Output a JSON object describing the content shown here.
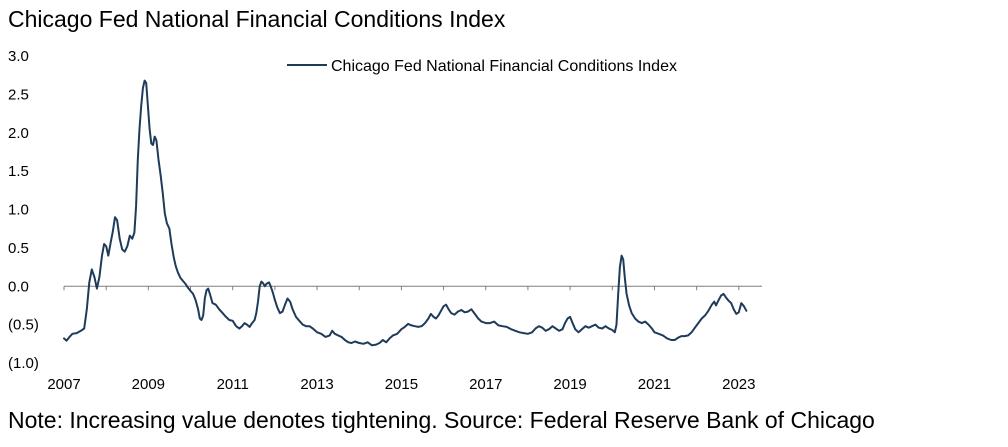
{
  "chart_data": {
    "type": "line",
    "title": "Chicago Fed National Financial Conditions Index",
    "note": "Note: Increasing value denotes tightening. Source: Federal Reserve Bank of Chicago",
    "xlabel": "",
    "ylabel": "",
    "xlim": [
      2007.0,
      2023.55
    ],
    "ylim": [
      -1.0,
      3.0
    ],
    "grid": false,
    "zero_line": true,
    "legend_position": "top-right",
    "x_ticks": [
      {
        "value": 2007,
        "label": "2007"
      },
      {
        "value": 2009,
        "label": "2009"
      },
      {
        "value": 2011,
        "label": "2011"
      },
      {
        "value": 2013,
        "label": "2013"
      },
      {
        "value": 2015,
        "label": "2015"
      },
      {
        "value": 2017,
        "label": "2017"
      },
      {
        "value": 2019,
        "label": "2019"
      },
      {
        "value": 2021,
        "label": "2021"
      },
      {
        "value": 2023,
        "label": "2023"
      }
    ],
    "y_ticks": [
      {
        "value": 3.0,
        "label": "3.0"
      },
      {
        "value": 2.5,
        "label": "2.5"
      },
      {
        "value": 2.0,
        "label": "2.0"
      },
      {
        "value": 1.5,
        "label": "1.5"
      },
      {
        "value": 1.0,
        "label": "1.0"
      },
      {
        "value": 0.5,
        "label": "0.5"
      },
      {
        "value": 0.0,
        "label": "0.0"
      },
      {
        "value": -0.5,
        "label": "(0.5)"
      },
      {
        "value": -1.0,
        "label": "(1.0)"
      }
    ],
    "series": [
      {
        "name": "Chicago Fed National Financial Conditions Index",
        "color": "#1f3b5a",
        "points": [
          [
            2007.0,
            -0.68
          ],
          [
            2007.06,
            -0.71
          ],
          [
            2007.13,
            -0.66
          ],
          [
            2007.2,
            -0.62
          ],
          [
            2007.3,
            -0.61
          ],
          [
            2007.4,
            -0.58
          ],
          [
            2007.48,
            -0.55
          ],
          [
            2007.54,
            -0.3
          ],
          [
            2007.6,
            0.05
          ],
          [
            2007.66,
            0.22
          ],
          [
            2007.72,
            0.12
          ],
          [
            2007.78,
            -0.03
          ],
          [
            2007.84,
            0.12
          ],
          [
            2007.9,
            0.4
          ],
          [
            2007.95,
            0.55
          ],
          [
            2008.0,
            0.52
          ],
          [
            2008.05,
            0.4
          ],
          [
            2008.1,
            0.55
          ],
          [
            2008.16,
            0.72
          ],
          [
            2008.21,
            0.9
          ],
          [
            2008.26,
            0.86
          ],
          [
            2008.32,
            0.62
          ],
          [
            2008.38,
            0.48
          ],
          [
            2008.44,
            0.45
          ],
          [
            2008.5,
            0.52
          ],
          [
            2008.56,
            0.66
          ],
          [
            2008.62,
            0.62
          ],
          [
            2008.67,
            0.7
          ],
          [
            2008.71,
            1.05
          ],
          [
            2008.75,
            1.65
          ],
          [
            2008.79,
            2.05
          ],
          [
            2008.83,
            2.35
          ],
          [
            2008.87,
            2.58
          ],
          [
            2008.91,
            2.68
          ],
          [
            2008.95,
            2.65
          ],
          [
            2008.99,
            2.35
          ],
          [
            2009.03,
            2.05
          ],
          [
            2009.07,
            1.86
          ],
          [
            2009.11,
            1.84
          ],
          [
            2009.15,
            1.95
          ],
          [
            2009.19,
            1.9
          ],
          [
            2009.24,
            1.65
          ],
          [
            2009.29,
            1.45
          ],
          [
            2009.34,
            1.22
          ],
          [
            2009.39,
            0.95
          ],
          [
            2009.44,
            0.82
          ],
          [
            2009.5,
            0.75
          ],
          [
            2009.55,
            0.55
          ],
          [
            2009.6,
            0.38
          ],
          [
            2009.65,
            0.26
          ],
          [
            2009.7,
            0.18
          ],
          [
            2009.76,
            0.11
          ],
          [
            2009.82,
            0.07
          ],
          [
            2009.88,
            0.03
          ],
          [
            2009.94,
            -0.02
          ],
          [
            2010.0,
            -0.06
          ],
          [
            2010.06,
            -0.1
          ],
          [
            2010.12,
            -0.18
          ],
          [
            2010.18,
            -0.3
          ],
          [
            2010.22,
            -0.42
          ],
          [
            2010.26,
            -0.44
          ],
          [
            2010.3,
            -0.38
          ],
          [
            2010.34,
            -0.15
          ],
          [
            2010.38,
            -0.05
          ],
          [
            2010.42,
            -0.03
          ],
          [
            2010.46,
            -0.1
          ],
          [
            2010.52,
            -0.22
          ],
          [
            2010.6,
            -0.24
          ],
          [
            2010.68,
            -0.3
          ],
          [
            2010.76,
            -0.35
          ],
          [
            2010.84,
            -0.4
          ],
          [
            2010.92,
            -0.44
          ],
          [
            2011.0,
            -0.45
          ],
          [
            2011.08,
            -0.52
          ],
          [
            2011.16,
            -0.55
          ],
          [
            2011.22,
            -0.52
          ],
          [
            2011.28,
            -0.48
          ],
          [
            2011.34,
            -0.5
          ],
          [
            2011.4,
            -0.53
          ],
          [
            2011.46,
            -0.48
          ],
          [
            2011.52,
            -0.44
          ],
          [
            2011.56,
            -0.35
          ],
          [
            2011.6,
            -0.2
          ],
          [
            2011.64,
            0.0
          ],
          [
            2011.68,
            0.06
          ],
          [
            2011.72,
            0.04
          ],
          [
            2011.76,
            0.0
          ],
          [
            2011.8,
            0.03
          ],
          [
            2011.86,
            0.05
          ],
          [
            2011.9,
            0.0
          ],
          [
            2011.95,
            -0.08
          ],
          [
            2012.0,
            -0.18
          ],
          [
            2012.06,
            -0.28
          ],
          [
            2012.12,
            -0.35
          ],
          [
            2012.18,
            -0.33
          ],
          [
            2012.24,
            -0.24
          ],
          [
            2012.3,
            -0.16
          ],
          [
            2012.36,
            -0.2
          ],
          [
            2012.42,
            -0.3
          ],
          [
            2012.5,
            -0.4
          ],
          [
            2012.58,
            -0.45
          ],
          [
            2012.66,
            -0.5
          ],
          [
            2012.74,
            -0.52
          ],
          [
            2012.82,
            -0.52
          ],
          [
            2012.9,
            -0.55
          ],
          [
            2013.0,
            -0.6
          ],
          [
            2013.1,
            -0.62
          ],
          [
            2013.2,
            -0.66
          ],
          [
            2013.3,
            -0.64
          ],
          [
            2013.36,
            -0.58
          ],
          [
            2013.42,
            -0.62
          ],
          [
            2013.5,
            -0.64
          ],
          [
            2013.58,
            -0.66
          ],
          [
            2013.66,
            -0.7
          ],
          [
            2013.74,
            -0.73
          ],
          [
            2013.82,
            -0.74
          ],
          [
            2013.9,
            -0.72
          ],
          [
            2014.0,
            -0.74
          ],
          [
            2014.1,
            -0.75
          ],
          [
            2014.2,
            -0.73
          ],
          [
            2014.3,
            -0.77
          ],
          [
            2014.4,
            -0.76
          ],
          [
            2014.48,
            -0.74
          ],
          [
            2014.56,
            -0.7
          ],
          [
            2014.64,
            -0.73
          ],
          [
            2014.72,
            -0.68
          ],
          [
            2014.8,
            -0.64
          ],
          [
            2014.9,
            -0.62
          ],
          [
            2015.0,
            -0.56
          ],
          [
            2015.08,
            -0.53
          ],
          [
            2015.16,
            -0.49
          ],
          [
            2015.24,
            -0.51
          ],
          [
            2015.32,
            -0.52
          ],
          [
            2015.4,
            -0.53
          ],
          [
            2015.48,
            -0.52
          ],
          [
            2015.56,
            -0.48
          ],
          [
            2015.64,
            -0.42
          ],
          [
            2015.7,
            -0.36
          ],
          [
            2015.76,
            -0.4
          ],
          [
            2015.82,
            -0.42
          ],
          [
            2015.88,
            -0.38
          ],
          [
            2015.94,
            -0.32
          ],
          [
            2016.0,
            -0.26
          ],
          [
            2016.06,
            -0.24
          ],
          [
            2016.12,
            -0.3
          ],
          [
            2016.18,
            -0.35
          ],
          [
            2016.26,
            -0.37
          ],
          [
            2016.34,
            -0.33
          ],
          [
            2016.42,
            -0.31
          ],
          [
            2016.5,
            -0.34
          ],
          [
            2016.58,
            -0.33
          ],
          [
            2016.66,
            -0.3
          ],
          [
            2016.74,
            -0.36
          ],
          [
            2016.82,
            -0.42
          ],
          [
            2016.9,
            -0.46
          ],
          [
            2017.0,
            -0.48
          ],
          [
            2017.1,
            -0.48
          ],
          [
            2017.2,
            -0.46
          ],
          [
            2017.3,
            -0.51
          ],
          [
            2017.4,
            -0.52
          ],
          [
            2017.5,
            -0.53
          ],
          [
            2017.6,
            -0.56
          ],
          [
            2017.7,
            -0.58
          ],
          [
            2017.8,
            -0.6
          ],
          [
            2017.9,
            -0.61
          ],
          [
            2018.0,
            -0.62
          ],
          [
            2018.1,
            -0.6
          ],
          [
            2018.18,
            -0.55
          ],
          [
            2018.26,
            -0.52
          ],
          [
            2018.34,
            -0.54
          ],
          [
            2018.42,
            -0.58
          ],
          [
            2018.5,
            -0.56
          ],
          [
            2018.58,
            -0.52
          ],
          [
            2018.66,
            -0.55
          ],
          [
            2018.74,
            -0.58
          ],
          [
            2018.82,
            -0.56
          ],
          [
            2018.88,
            -0.48
          ],
          [
            2018.94,
            -0.42
          ],
          [
            2019.0,
            -0.4
          ],
          [
            2019.06,
            -0.48
          ],
          [
            2019.12,
            -0.56
          ],
          [
            2019.2,
            -0.6
          ],
          [
            2019.28,
            -0.56
          ],
          [
            2019.36,
            -0.52
          ],
          [
            2019.44,
            -0.54
          ],
          [
            2019.52,
            -0.52
          ],
          [
            2019.6,
            -0.5
          ],
          [
            2019.68,
            -0.54
          ],
          [
            2019.76,
            -0.55
          ],
          [
            2019.84,
            -0.52
          ],
          [
            2019.92,
            -0.55
          ],
          [
            2020.0,
            -0.57
          ],
          [
            2020.06,
            -0.6
          ],
          [
            2020.1,
            -0.5
          ],
          [
            2020.14,
            -0.1
          ],
          [
            2020.18,
            0.25
          ],
          [
            2020.22,
            0.4
          ],
          [
            2020.26,
            0.35
          ],
          [
            2020.3,
            0.1
          ],
          [
            2020.34,
            -0.1
          ],
          [
            2020.4,
            -0.25
          ],
          [
            2020.46,
            -0.35
          ],
          [
            2020.54,
            -0.42
          ],
          [
            2020.62,
            -0.46
          ],
          [
            2020.7,
            -0.48
          ],
          [
            2020.78,
            -0.46
          ],
          [
            2020.86,
            -0.5
          ],
          [
            2020.94,
            -0.55
          ],
          [
            2021.0,
            -0.6
          ],
          [
            2021.1,
            -0.62
          ],
          [
            2021.2,
            -0.64
          ],
          [
            2021.3,
            -0.68
          ],
          [
            2021.4,
            -0.7
          ],
          [
            2021.48,
            -0.7
          ],
          [
            2021.56,
            -0.67
          ],
          [
            2021.64,
            -0.65
          ],
          [
            2021.72,
            -0.65
          ],
          [
            2021.8,
            -0.64
          ],
          [
            2021.88,
            -0.6
          ],
          [
            2021.96,
            -0.54
          ],
          [
            2022.04,
            -0.48
          ],
          [
            2022.12,
            -0.42
          ],
          [
            2022.2,
            -0.38
          ],
          [
            2022.28,
            -0.32
          ],
          [
            2022.36,
            -0.24
          ],
          [
            2022.42,
            -0.2
          ],
          [
            2022.46,
            -0.25
          ],
          [
            2022.52,
            -0.18
          ],
          [
            2022.58,
            -0.12
          ],
          [
            2022.64,
            -0.1
          ],
          [
            2022.7,
            -0.15
          ],
          [
            2022.76,
            -0.19
          ],
          [
            2022.82,
            -0.22
          ],
          [
            2022.88,
            -0.3
          ],
          [
            2022.94,
            -0.36
          ],
          [
            2023.0,
            -0.34
          ],
          [
            2023.06,
            -0.22
          ],
          [
            2023.12,
            -0.26
          ],
          [
            2023.18,
            -0.32
          ]
        ]
      }
    ]
  }
}
